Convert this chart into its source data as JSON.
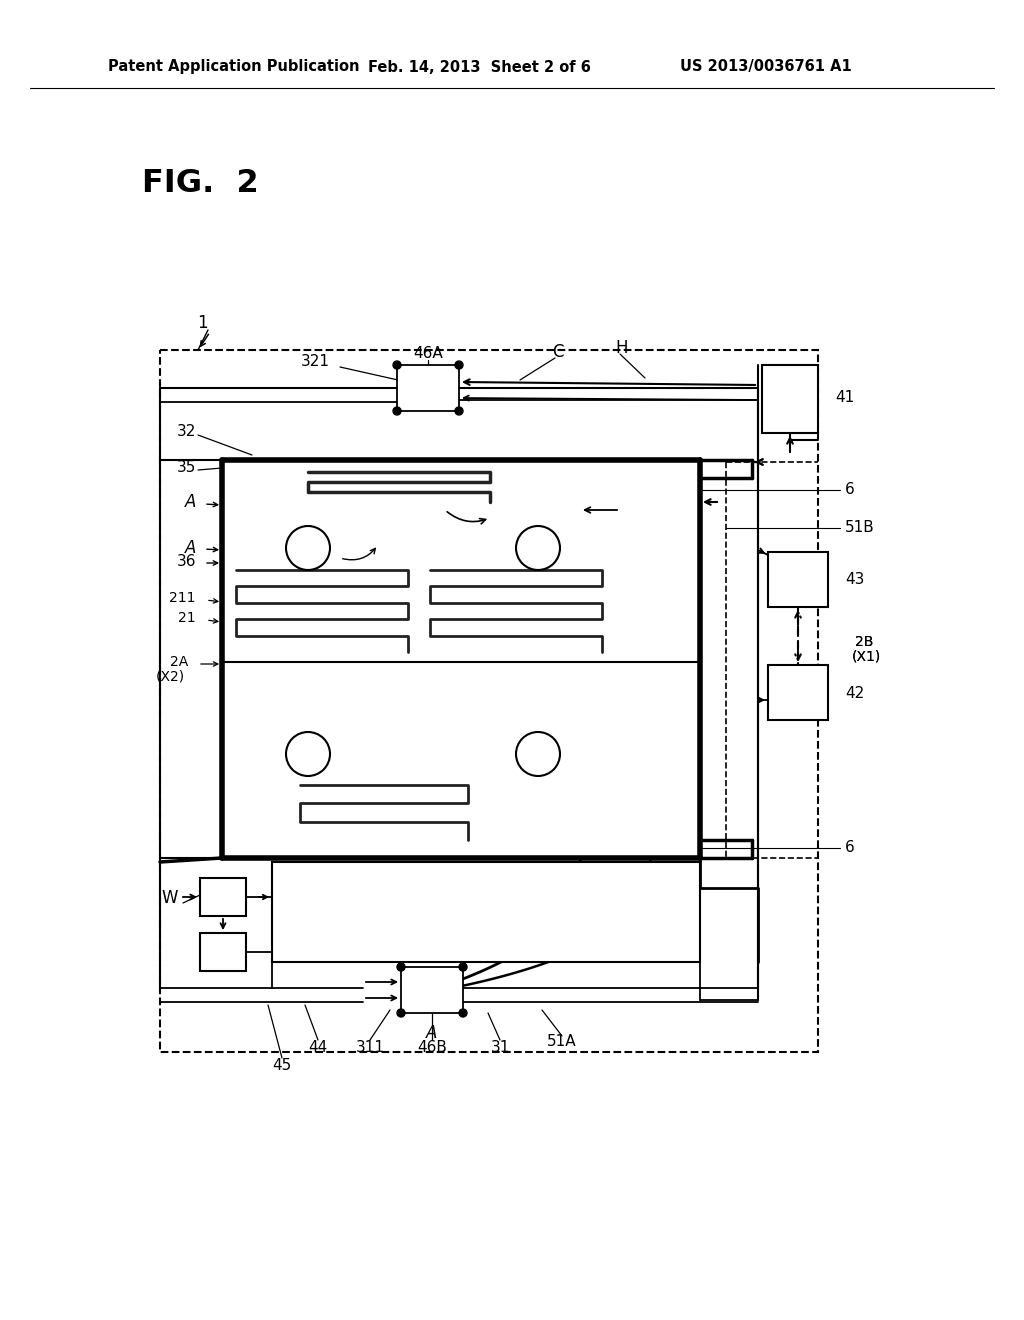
{
  "bg": "#ffffff",
  "lc": "#000000",
  "header_left": "Patent Application Publication",
  "header_mid": "Feb. 14, 2013  Sheet 2 of 6",
  "header_right": "US 2013/0036761 A1",
  "fig_label": "FIG.  2"
}
